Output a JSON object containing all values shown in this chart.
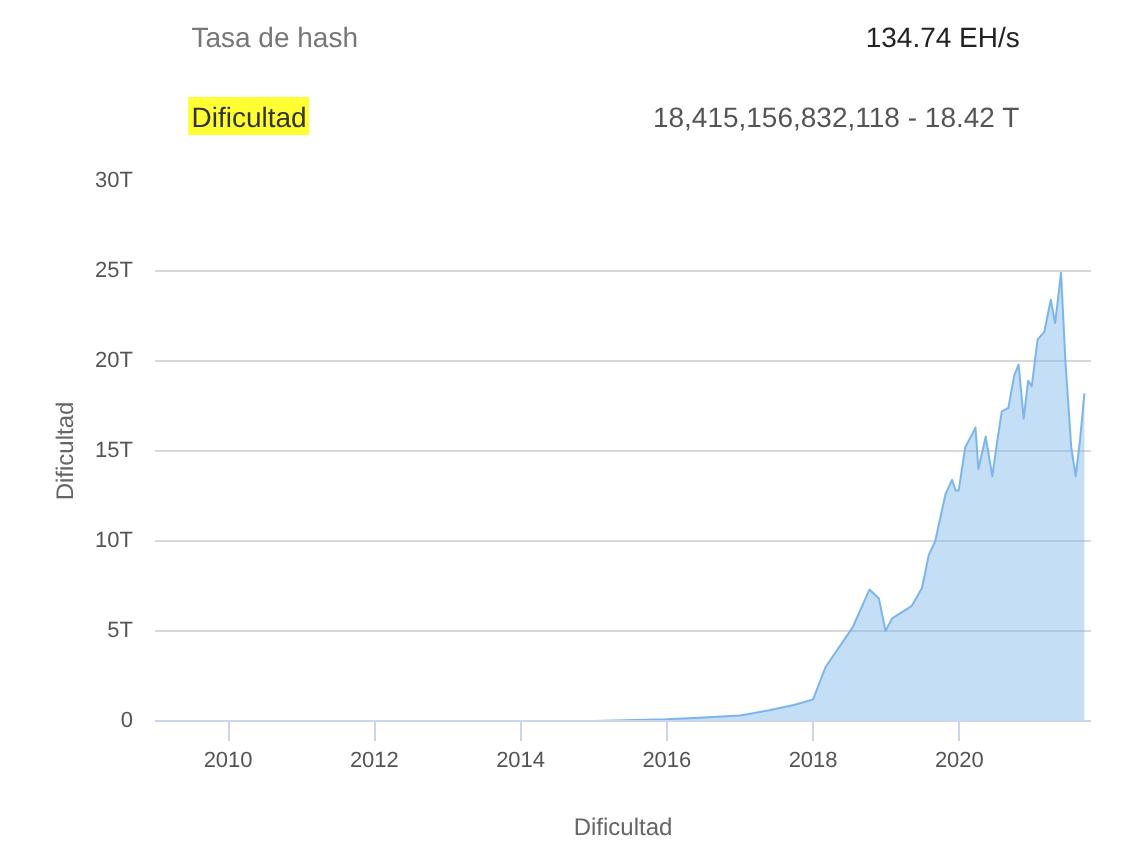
{
  "chart_data": {
    "type": "area",
    "xlabel": "Dificultad",
    "ylabel": "Dificultad",
    "annotations": [
      "Tasa de hash",
      "134.74 EH/s",
      "Dificultad",
      "18,415,156,832,118 - 18.42 T"
    ],
    "x": [
      2009.0,
      2010.0,
      2011.0,
      2012.0,
      2013.0,
      2014.0,
      2015.0,
      2016.0,
      2016.5,
      2017.0,
      2017.4,
      2017.75,
      2018.0,
      2018.17,
      2018.54,
      2018.77,
      2018.9,
      2018.99,
      2019.08,
      2019.35,
      2019.49,
      2019.58,
      2019.67,
      2019.81,
      2019.9,
      2019.95,
      2019.99,
      2020.08,
      2020.22,
      2020.26,
      2020.36,
      2020.45,
      2020.52,
      2020.58,
      2020.67,
      2020.75,
      2020.81,
      2020.88,
      2020.94,
      2020.99,
      2021.07,
      2021.16,
      2021.25,
      2021.31,
      2021.39,
      2021.45,
      2021.53,
      2021.59,
      2021.65,
      2021.71
    ],
    "series": [
      {
        "color": "#7cb5ec",
        "values": [
          0,
          0,
          0,
          0,
          0,
          0,
          0,
          0.1,
          0.2,
          0.3,
          0.6,
          0.9,
          1.2,
          3.0,
          5.2,
          7.3,
          6.8,
          5.0,
          5.7,
          6.4,
          7.4,
          9.2,
          10.0,
          12.6,
          13.4,
          12.8,
          12.8,
          15.2,
          16.3,
          14.0,
          15.8,
          13.6,
          15.6,
          17.2,
          17.4,
          19.2,
          19.8,
          16.8,
          18.9,
          18.6,
          21.2,
          21.6,
          23.4,
          22.1,
          24.9,
          20.0,
          15.2,
          13.6,
          15.6,
          18.2
        ]
      }
    ],
    "xlim": [
      2009.0,
      2021.8
    ],
    "ylim": [
      0,
      30
    ],
    "xticks": [
      2010,
      2012,
      2014,
      2016,
      2018,
      2020
    ],
    "yticks": [
      0,
      {
        "value": 5,
        "label": "5T"
      },
      {
        "value": 10,
        "label": "10T"
      },
      {
        "value": 15,
        "label": "15T"
      },
      {
        "value": 20,
        "label": "20T"
      },
      {
        "value": 25,
        "label": "25T"
      },
      {
        "value": 30,
        "label": "30T"
      }
    ],
    "grid": "y"
  }
}
